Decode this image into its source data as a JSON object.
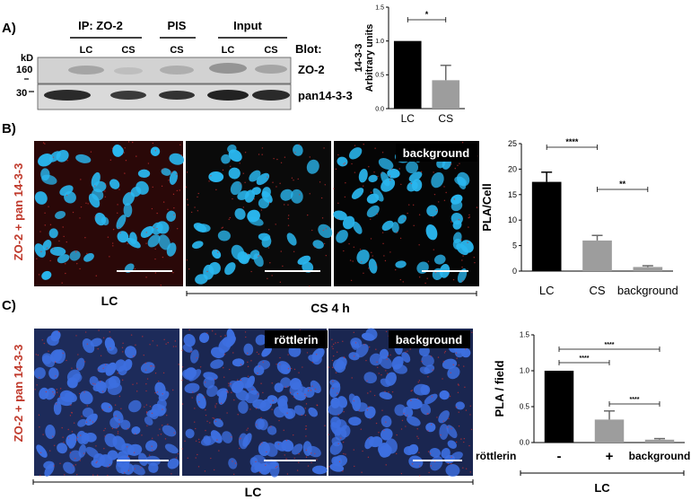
{
  "panel_labels": {
    "a": "A)",
    "b": "B)",
    "c": "C)"
  },
  "panel_a": {
    "kd_unit": "kD",
    "markers": [
      "160",
      "30"
    ],
    "groups": [
      "IP: ZO-2",
      "PIS",
      "Input"
    ],
    "lanes": [
      "LC",
      "CS",
      "CS",
      "LC",
      "CS"
    ],
    "blot_label": "Blot:",
    "bands": [
      "ZO-2",
      "pan14-3-3"
    ]
  },
  "panel_b": {
    "side_label": "ZO-2 + pan 14-3-3",
    "image_tags": {
      "background": "background"
    },
    "captions": {
      "lc": "LC",
      "cs": "CS 4 h"
    }
  },
  "panel_c": {
    "side_label": "ZO-2 + pan 14-3-3",
    "image_tags": {
      "rottlerin": "röttlerin",
      "background": "background"
    },
    "caption": "LC",
    "row_label": "röttlerin",
    "treatment_marks": [
      "-",
      "+"
    ],
    "group_caption": "LC"
  },
  "colors": {
    "nuclei_b": "#2ab7ef",
    "nuclei_c": "#3d6fe0",
    "bar_black": "#000000",
    "bar_gray": "#9d9d9d",
    "side_label": "#c0392b"
  },
  "chart_data": [
    {
      "type": "bar",
      "panel": "A",
      "categories": [
        "LC",
        "CS"
      ],
      "values": [
        1.0,
        0.42
      ],
      "errors": [
        0,
        0.22
      ],
      "ylabel": "14-3-3\nArbitrary units",
      "ylim": [
        0,
        1.5
      ],
      "yticks": [
        "0.0",
        "0.5",
        "1.0",
        "1.5"
      ],
      "significance": [
        "*"
      ]
    },
    {
      "type": "bar",
      "panel": "B",
      "categories": [
        "LC",
        "CS",
        "background"
      ],
      "values": [
        17.5,
        6.0,
        0.8
      ],
      "errors": [
        1.9,
        1.0,
        0.25
      ],
      "ylabel": "PLA/Cell",
      "ylim": [
        0,
        25
      ],
      "yticks": [
        "0",
        "5",
        "10",
        "15",
        "20",
        "25"
      ],
      "significance": [
        "****",
        "**"
      ]
    },
    {
      "type": "bar",
      "panel": "C",
      "categories": [
        "-",
        "+",
        "background"
      ],
      "values": [
        1.0,
        0.32,
        0.04
      ],
      "errors": [
        0,
        0.12,
        0.015
      ],
      "ylabel": "PLA / field",
      "ylim": [
        0,
        1.5
      ],
      "yticks": [
        "0.0",
        "0.5",
        "1.0",
        "1.5"
      ],
      "significance": [
        "****",
        "****",
        "****"
      ]
    }
  ]
}
